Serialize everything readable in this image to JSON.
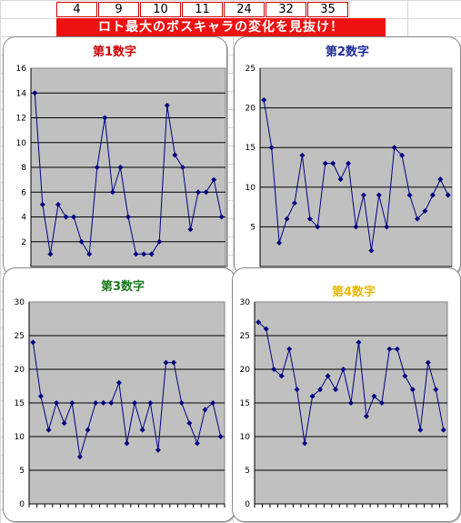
{
  "numbers": [
    "4",
    "9",
    "10",
    "11",
    "24",
    "32",
    "35"
  ],
  "banner": "ロト最大のボスキャラの変化を見抜け！",
  "chart_data": [
    {
      "type": "line",
      "title": "第1数字",
      "title_color": "#cc0000",
      "ylim": [
        0,
        16
      ],
      "yticks": [
        2,
        4,
        6,
        8,
        10,
        12,
        14,
        16
      ],
      "values": [
        14,
        5,
        1,
        5,
        4,
        4,
        2,
        1,
        8,
        12,
        6,
        8,
        4,
        1,
        1,
        1,
        2,
        13,
        9,
        8,
        3,
        6,
        6,
        7,
        4
      ]
    },
    {
      "type": "line",
      "title": "第2数字",
      "title_color": "#1a2a9a",
      "ylim": [
        0,
        25
      ],
      "yticks": [
        5,
        10,
        15,
        20,
        25
      ],
      "values": [
        21,
        15,
        3,
        6,
        8,
        14,
        6,
        5,
        13,
        13,
        11,
        13,
        5,
        9,
        2,
        9,
        5,
        15,
        14,
        9,
        6,
        7,
        9,
        11,
        9
      ]
    },
    {
      "type": "line",
      "title": "第3数字",
      "title_color": "#1a7a1a",
      "ylim": [
        0,
        30
      ],
      "yticks": [
        0,
        5,
        10,
        15,
        20,
        25,
        30
      ],
      "values": [
        24,
        16,
        11,
        15,
        12,
        15,
        7,
        11,
        15,
        15,
        15,
        18,
        9,
        15,
        11,
        15,
        8,
        21,
        21,
        15,
        12,
        9,
        14,
        15,
        10
      ]
    },
    {
      "type": "line",
      "title": "第4数字",
      "title_color": "#e8b800",
      "ylim": [
        0,
        30
      ],
      "yticks": [
        0,
        5,
        10,
        15,
        20,
        25,
        30
      ],
      "values": [
        27,
        26,
        20,
        19,
        23,
        17,
        9,
        16,
        17,
        19,
        17,
        20,
        15,
        24,
        13,
        16,
        15,
        23,
        23,
        19,
        17,
        11,
        21,
        17,
        11
      ]
    }
  ]
}
